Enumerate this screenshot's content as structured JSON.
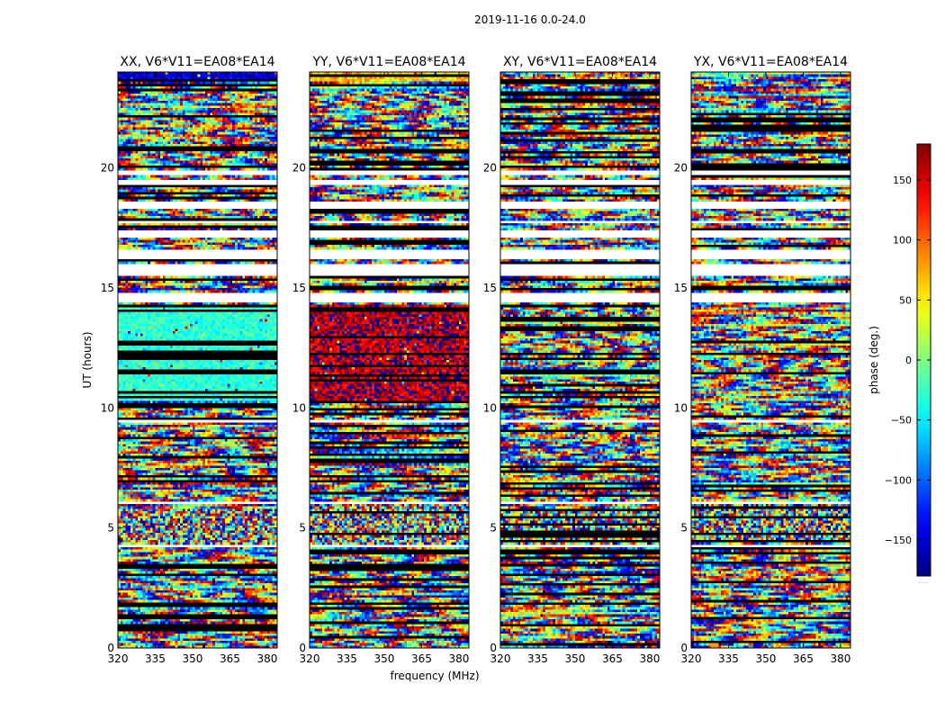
{
  "chart_data": {
    "type": "heatmap",
    "suptitle": "2019-11-16 0.0-24.0",
    "xlabel": "frequency (MHz)",
    "ylabel": "UT (hours)",
    "x_range": [
      320,
      384
    ],
    "y_range": [
      0,
      24
    ],
    "x_ticks": [
      320,
      335,
      350,
      365,
      380
    ],
    "y_ticks": [
      0,
      5,
      10,
      15,
      20
    ],
    "colormap": "jet",
    "colorbar": {
      "label": "phase (deg.)",
      "range": [
        -180,
        180
      ],
      "ticks": [
        -150,
        -100,
        -50,
        0,
        50,
        100,
        150
      ],
      "footnote": "......"
    },
    "flagged_hour_bands": [
      [
        2.95,
        3.05
      ],
      [
        4.2,
        4.3
      ],
      [
        5.45,
        5.55
      ],
      [
        6.0,
        6.1
      ],
      [
        9.4,
        9.5
      ],
      [
        14.4,
        14.75
      ],
      [
        15.55,
        15.95
      ],
      [
        16.25,
        16.6
      ],
      [
        17.15,
        17.4
      ],
      [
        17.7,
        17.8
      ],
      [
        18.3,
        18.55
      ],
      [
        19.3,
        19.45
      ],
      [
        19.7,
        19.85
      ]
    ],
    "panels": [
      {
        "title": "XX, V6*V11=EA08*EA14",
        "pol": "XX",
        "baseline": "V6*V11",
        "antennas": "EA08*EA14",
        "features": [
          {
            "hours": [
              10.3,
              14.3
            ],
            "phase_deg": -30,
            "spread_deg": 25
          },
          {
            "hours": [
              4.2,
              5.8
            ],
            "phase_deg": 0,
            "spread_deg": 180
          },
          {
            "hours": [
              23.6,
              24.0
            ],
            "phase_deg": -150,
            "spread_deg": 30
          }
        ]
      },
      {
        "title": "YY, V6*V11=EA08*EA14",
        "pol": "YY",
        "baseline": "V6*V11",
        "antennas": "EA08*EA14",
        "features": [
          {
            "hours": [
              10.3,
              14.3
            ],
            "phase_deg": 160,
            "spread_deg": 40
          },
          {
            "hours": [
              4.2,
              6.0
            ],
            "phase_deg": 0,
            "spread_deg": 180
          },
          {
            "hours": [
              23.6,
              24.0
            ],
            "phase_deg": 60,
            "spread_deg": 40
          }
        ]
      },
      {
        "title": "XY, V6*V11=EA08*EA14",
        "pol": "XY",
        "baseline": "V6*V11",
        "antennas": "EA08*EA14",
        "features": [
          {
            "hours": [
              4.2,
              5.8
            ],
            "phase_deg": 0,
            "spread_deg": 180
          }
        ]
      },
      {
        "title": "YX, V6*V11=EA08*EA14",
        "pol": "YX",
        "baseline": "V6*V11",
        "antennas": "EA08*EA14",
        "features": [
          {
            "hours": [
              4.5,
              6.0
            ],
            "phase_deg": 0,
            "spread_deg": 180
          }
        ]
      }
    ]
  }
}
